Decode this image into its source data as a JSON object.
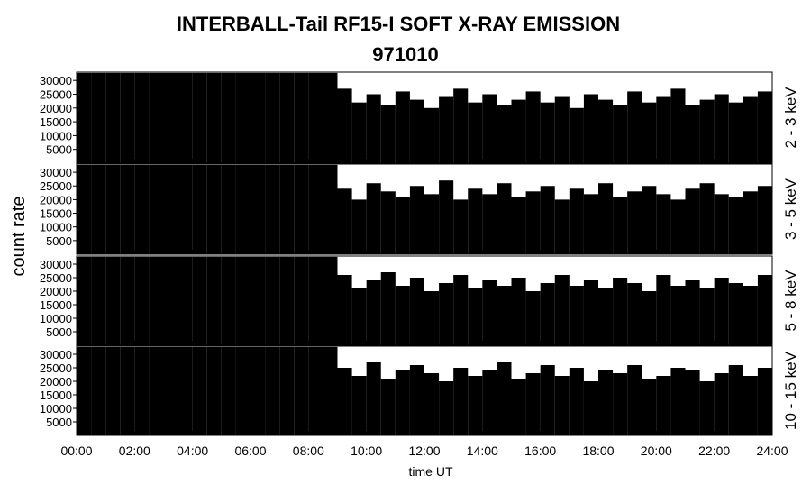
{
  "title": "INTERBALL-Tail RF15-I SOFT X-RAY EMISSION",
  "subtitle": "971010",
  "ylabel": "count rate",
  "xlabel": "time UT",
  "xlim": [
    0,
    24
  ],
  "xticks": [
    {
      "value": 0,
      "label": "00:00"
    },
    {
      "value": 2,
      "label": "02:00"
    },
    {
      "value": 4,
      "label": "04:00"
    },
    {
      "value": 6,
      "label": "06:00"
    },
    {
      "value": 8,
      "label": "08:00"
    },
    {
      "value": 10,
      "label": "10:00"
    },
    {
      "value": 12,
      "label": "12:00"
    },
    {
      "value": 14,
      "label": "14:00"
    },
    {
      "value": 16,
      "label": "16:00"
    },
    {
      "value": 18,
      "label": "18:00"
    },
    {
      "value": 20,
      "label": "20:00"
    },
    {
      "value": 22,
      "label": "22:00"
    },
    {
      "value": 24,
      "label": "24:00"
    }
  ],
  "bins": [
    0,
    0.5,
    1,
    1.5,
    2,
    2.5,
    3,
    3.5,
    4,
    4.5,
    5,
    5.5,
    6,
    6.5,
    7,
    7.5,
    8,
    8.5,
    9,
    9.5,
    10,
    10.5,
    11,
    11.5,
    12,
    12.5,
    13,
    13.5,
    14,
    14.5,
    15,
    15.5,
    16,
    16.5,
    17,
    17.5,
    18,
    18.5,
    19,
    19.5,
    20,
    20.5,
    21,
    21.5,
    22,
    22.5,
    23,
    23.5,
    24
  ],
  "chart_data": [
    {
      "type": "histogram",
      "label": "2 - 3 keV",
      "color": "#000000",
      "ylim": [
        0,
        33000
      ],
      "yticks": [
        5000,
        10000,
        15000,
        20000,
        25000,
        30000
      ],
      "values": [
        32700,
        32700,
        32700,
        32700,
        32700,
        32700,
        32700,
        32700,
        32700,
        32700,
        32700,
        32700,
        32700,
        32700,
        32700,
        32700,
        32700,
        32700,
        27000,
        22000,
        25000,
        21000,
        26000,
        23000,
        20000,
        24000,
        27000,
        22000,
        25000,
        21000,
        23000,
        26000,
        22000,
        24000,
        20000,
        25000,
        23000,
        21000,
        26000,
        22000,
        24000,
        27000,
        21000,
        23000,
        25000,
        22000,
        24000,
        26000
      ]
    },
    {
      "type": "histogram",
      "label": "3 - 5 keV",
      "color": "#000000",
      "ylim": [
        0,
        33000
      ],
      "yticks": [
        5000,
        10000,
        15000,
        20000,
        25000,
        30000
      ],
      "values": [
        32700,
        32700,
        32700,
        32700,
        32700,
        32700,
        32700,
        32700,
        32700,
        32700,
        32700,
        32700,
        32700,
        32700,
        32700,
        32700,
        32700,
        32700,
        24000,
        20000,
        26000,
        23000,
        21000,
        25000,
        22000,
        27000,
        20000,
        24000,
        22000,
        26000,
        21000,
        23000,
        25000,
        20000,
        24000,
        22000,
        26000,
        21000,
        23000,
        25000,
        22000,
        20000,
        24000,
        26000,
        22000,
        21000,
        23000,
        25000
      ]
    },
    {
      "type": "histogram",
      "label": "5 - 8 keV",
      "color": "#000000",
      "ylim": [
        0,
        33000
      ],
      "yticks": [
        5000,
        10000,
        15000,
        20000,
        25000,
        30000
      ],
      "values": [
        32700,
        32700,
        32700,
        32700,
        32700,
        32700,
        32700,
        32700,
        32700,
        32700,
        32700,
        32700,
        32700,
        32700,
        32700,
        32700,
        32700,
        32700,
        26000,
        21000,
        24000,
        27000,
        22000,
        25000,
        20000,
        23000,
        26000,
        21000,
        24000,
        22000,
        25000,
        20000,
        23000,
        26000,
        22000,
        24000,
        21000,
        25000,
        23000,
        20000,
        26000,
        22000,
        24000,
        21000,
        25000,
        23000,
        22000,
        26000
      ]
    },
    {
      "type": "histogram",
      "label": "10 - 15 keV",
      "color": "#000000",
      "ylim": [
        0,
        33000
      ],
      "yticks": [
        5000,
        10000,
        15000,
        20000,
        25000,
        30000
      ],
      "values": [
        32700,
        32700,
        32700,
        32700,
        32700,
        32700,
        32700,
        32700,
        32700,
        32700,
        32700,
        32700,
        32700,
        32700,
        32700,
        32700,
        32700,
        32700,
        25000,
        22000,
        27000,
        21000,
        24000,
        26000,
        23000,
        20000,
        25000,
        22000,
        24000,
        27000,
        21000,
        23000,
        26000,
        22000,
        25000,
        20000,
        24000,
        23000,
        26000,
        21000,
        22000,
        25000,
        24000,
        20000,
        23000,
        26000,
        22000,
        25000
      ]
    }
  ]
}
